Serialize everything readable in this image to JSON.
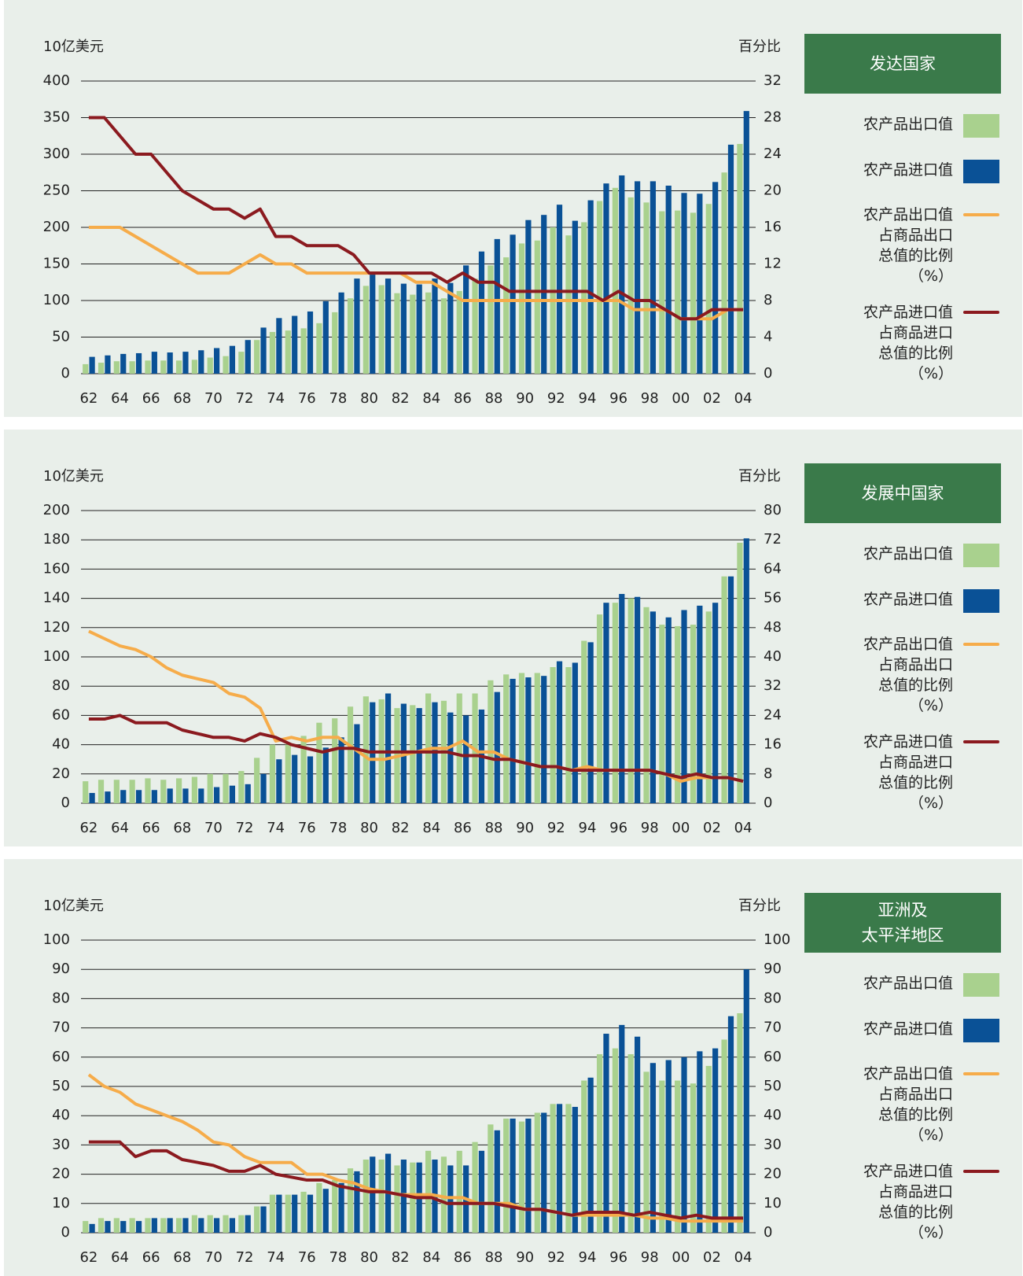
{
  "chart_data": [
    {
      "type": "bar",
      "title": "发达国家",
      "ylabel": "10亿美元",
      "y2label": "百分比",
      "categories": [
        "62",
        null,
        "64",
        null,
        "66",
        null,
        "68",
        null,
        "70",
        null,
        "72",
        null,
        "74",
        null,
        "76",
        null,
        "78",
        null,
        "80",
        null,
        "82",
        null,
        "84",
        null,
        "86",
        null,
        "88",
        null,
        "90",
        null,
        "92",
        null,
        "94",
        null,
        "96",
        null,
        "98",
        null,
        "00",
        null,
        "02",
        null,
        "04"
      ],
      "ylim": [
        0,
        400
      ],
      "yticks": [
        0,
        50,
        100,
        150,
        200,
        250,
        300,
        350,
        400
      ],
      "y2lim": [
        0,
        32
      ],
      "y2ticks": [
        0,
        4,
        8,
        12,
        16,
        20,
        24,
        28,
        32
      ],
      "grid": true,
      "series": [
        {
          "name": "农产品出口值",
          "type": "bar",
          "color": "#a9d18e",
          "values": [
            13,
            15,
            17,
            17,
            18,
            18,
            18,
            19,
            22,
            24,
            30,
            46,
            57,
            59,
            62,
            69,
            84,
            103,
            120,
            121,
            110,
            108,
            111,
            103,
            113,
            130,
            148,
            159,
            178,
            182,
            200,
            189,
            207,
            236,
            254,
            241,
            234,
            222,
            223,
            220,
            232,
            275,
            314
          ]
        },
        {
          "name": "农产品进口值",
          "type": "bar",
          "color": "#0a5196",
          "values": [
            23,
            25,
            27,
            28,
            30,
            29,
            30,
            32,
            35,
            38,
            46,
            63,
            76,
            79,
            85,
            99,
            111,
            130,
            138,
            130,
            123,
            122,
            130,
            124,
            148,
            167,
            184,
            190,
            210,
            217,
            231,
            209,
            237,
            260,
            271,
            263,
            263,
            257,
            247,
            246,
            262,
            313,
            359
          ]
        },
        {
          "name": "农产品出口值\n占商品出口\n总值的比例\n（%）",
          "type": "line",
          "axis": "y2",
          "color": "#f6ac4a",
          "values": [
            16,
            16,
            16,
            15,
            14,
            13,
            12,
            11,
            11,
            11,
            12,
            13,
            12,
            12,
            11,
            11,
            11,
            11,
            11,
            11,
            11,
            10,
            10,
            9,
            8,
            8,
            8,
            8,
            8,
            8,
            8,
            8,
            8,
            8,
            8,
            7,
            7,
            7,
            6,
            6,
            6,
            7,
            7
          ]
        },
        {
          "name": "农产品进口值\n占商品进口\n总值的比例\n（%）",
          "type": "line",
          "axis": "y2",
          "color": "#8b1a1f",
          "values": [
            28,
            28,
            26,
            24,
            24,
            22,
            20,
            19,
            18,
            18,
            17,
            18,
            15,
            15,
            14,
            14,
            14,
            13,
            11,
            11,
            11,
            11,
            11,
            10,
            11,
            10,
            10,
            9,
            9,
            9,
            9,
            9,
            9,
            8,
            9,
            8,
            8,
            7,
            6,
            6,
            7,
            7,
            7
          ]
        }
      ]
    },
    {
      "type": "bar",
      "title": "发展中国家",
      "ylabel": "10亿美元",
      "y2label": "百分比",
      "categories": [
        "62",
        null,
        "64",
        null,
        "66",
        null,
        "68",
        null,
        "70",
        null,
        "72",
        null,
        "74",
        null,
        "76",
        null,
        "78",
        null,
        "80",
        null,
        "82",
        null,
        "84",
        null,
        "86",
        null,
        "88",
        null,
        "90",
        null,
        "92",
        null,
        "94",
        null,
        "96",
        null,
        "98",
        null,
        "00",
        null,
        "02",
        null,
        "04"
      ],
      "ylim": [
        0,
        200
      ],
      "yticks": [
        0,
        20,
        40,
        60,
        80,
        100,
        120,
        140,
        160,
        180,
        200
      ],
      "y2lim": [
        0,
        80
      ],
      "y2ticks": [
        0,
        8,
        16,
        24,
        32,
        40,
        48,
        56,
        64,
        72,
        80
      ],
      "grid": true,
      "series": [
        {
          "name": "农产品出口值",
          "type": "bar",
          "color": "#a9d18e",
          "values": [
            15,
            16,
            16,
            16,
            17,
            16,
            17,
            18,
            20,
            20,
            22,
            31,
            40,
            40,
            46,
            55,
            58,
            66,
            73,
            71,
            65,
            67,
            75,
            70,
            75,
            75,
            84,
            88,
            89,
            89,
            93,
            93,
            111,
            129,
            137,
            140,
            134,
            122,
            121,
            122,
            131,
            155,
            178
          ]
        },
        {
          "name": "农产品进口值",
          "type": "bar",
          "color": "#0a5196",
          "values": [
            7,
            8,
            9,
            9,
            9,
            10,
            10,
            10,
            11,
            12,
            13,
            20,
            30,
            33,
            32,
            38,
            45,
            54,
            69,
            75,
            68,
            65,
            69,
            62,
            60,
            64,
            76,
            85,
            86,
            87,
            97,
            96,
            110,
            137,
            143,
            141,
            131,
            127,
            132,
            135,
            137,
            155,
            181
          ]
        },
        {
          "name": "农产品出口值\n占商品出口\n总值的比例\n（%）",
          "type": "line",
          "axis": "y2",
          "color": "#f6ac4a",
          "values": [
            47,
            45,
            43,
            42,
            40,
            37,
            35,
            34,
            33,
            30,
            29,
            26,
            17,
            18,
            17,
            18,
            18,
            15,
            12,
            12,
            13,
            14,
            15,
            15,
            17,
            14,
            14,
            12,
            11,
            10,
            10,
            9,
            10,
            9,
            9,
            9,
            9,
            8,
            6,
            7,
            7,
            7,
            6
          ]
        },
        {
          "name": "农产品进口值\n占商品进口\n总值的比例\n（%）",
          "type": "line",
          "axis": "y2",
          "color": "#8b1a1f",
          "values": [
            23,
            23,
            24,
            22,
            22,
            22,
            20,
            19,
            18,
            18,
            17,
            19,
            18,
            16,
            15,
            14,
            15,
            15,
            14,
            14,
            14,
            14,
            14,
            14,
            13,
            13,
            12,
            12,
            11,
            10,
            10,
            9,
            9,
            9,
            9,
            9,
            9,
            8,
            7,
            8,
            7,
            7,
            6
          ]
        }
      ]
    },
    {
      "type": "bar",
      "title": "亚洲及\n太平洋地区",
      "ylabel": "10亿美元",
      "y2label": "百分比",
      "categories": [
        "62",
        null,
        "64",
        null,
        "66",
        null,
        "68",
        null,
        "70",
        null,
        "72",
        null,
        "74",
        null,
        "76",
        null,
        "78",
        null,
        "80",
        null,
        "82",
        null,
        "84",
        null,
        "86",
        null,
        "88",
        null,
        "90",
        null,
        "92",
        null,
        "94",
        null,
        "96",
        null,
        "98",
        null,
        "00",
        null,
        "02",
        null,
        "04"
      ],
      "ylim": [
        0,
        100
      ],
      "yticks": [
        0,
        10,
        20,
        30,
        40,
        50,
        60,
        70,
        80,
        90,
        100
      ],
      "y2lim": [
        0,
        100
      ],
      "y2ticks": [
        0,
        10,
        20,
        30,
        40,
        50,
        60,
        70,
        80,
        90,
        100
      ],
      "grid": true,
      "series": [
        {
          "name": "农产品出口值",
          "type": "bar",
          "color": "#a9d18e",
          "values": [
            4,
            5,
            5,
            5,
            5,
            5,
            5,
            6,
            6,
            6,
            6,
            9,
            13,
            13,
            14,
            17,
            18,
            22,
            25,
            25,
            23,
            24,
            28,
            26,
            28,
            31,
            37,
            39,
            38,
            41,
            44,
            44,
            52,
            61,
            63,
            61,
            55,
            52,
            52,
            51,
            57,
            66,
            75
          ]
        },
        {
          "name": "农产品进口值",
          "type": "bar",
          "color": "#0a5196",
          "values": [
            3,
            4,
            4,
            4,
            5,
            5,
            5,
            5,
            5,
            5,
            6,
            9,
            13,
            13,
            13,
            15,
            17,
            21,
            26,
            27,
            25,
            24,
            25,
            23,
            23,
            28,
            35,
            39,
            39,
            41,
            44,
            43,
            53,
            68,
            71,
            67,
            58,
            59,
            60,
            62,
            63,
            74,
            90
          ]
        },
        {
          "name": "农产品出口值\n占商品出口\n总值的比例\n（%）",
          "type": "line",
          "axis": "y2",
          "color": "#f6ac4a",
          "values": [
            54,
            50,
            48,
            44,
            42,
            40,
            38,
            35,
            31,
            30,
            26,
            24,
            24,
            24,
            20,
            20,
            18,
            17,
            15,
            14,
            13,
            13,
            13,
            12,
            12,
            10,
            10,
            10,
            8,
            8,
            7,
            6,
            6,
            6,
            6,
            6,
            5,
            5,
            4,
            4,
            4,
            4,
            4
          ]
        },
        {
          "name": "农产品进口值\n占商品进口\n总值的比例\n（%）",
          "type": "line",
          "axis": "y2",
          "color": "#8b1a1f",
          "values": [
            31,
            31,
            31,
            26,
            28,
            28,
            25,
            24,
            23,
            21,
            21,
            23,
            20,
            19,
            18,
            18,
            16,
            15,
            14,
            14,
            13,
            12,
            12,
            10,
            10,
            10,
            10,
            9,
            8,
            8,
            7,
            6,
            7,
            7,
            7,
            6,
            7,
            6,
            5,
            6,
            5,
            5,
            5
          ]
        }
      ]
    }
  ]
}
